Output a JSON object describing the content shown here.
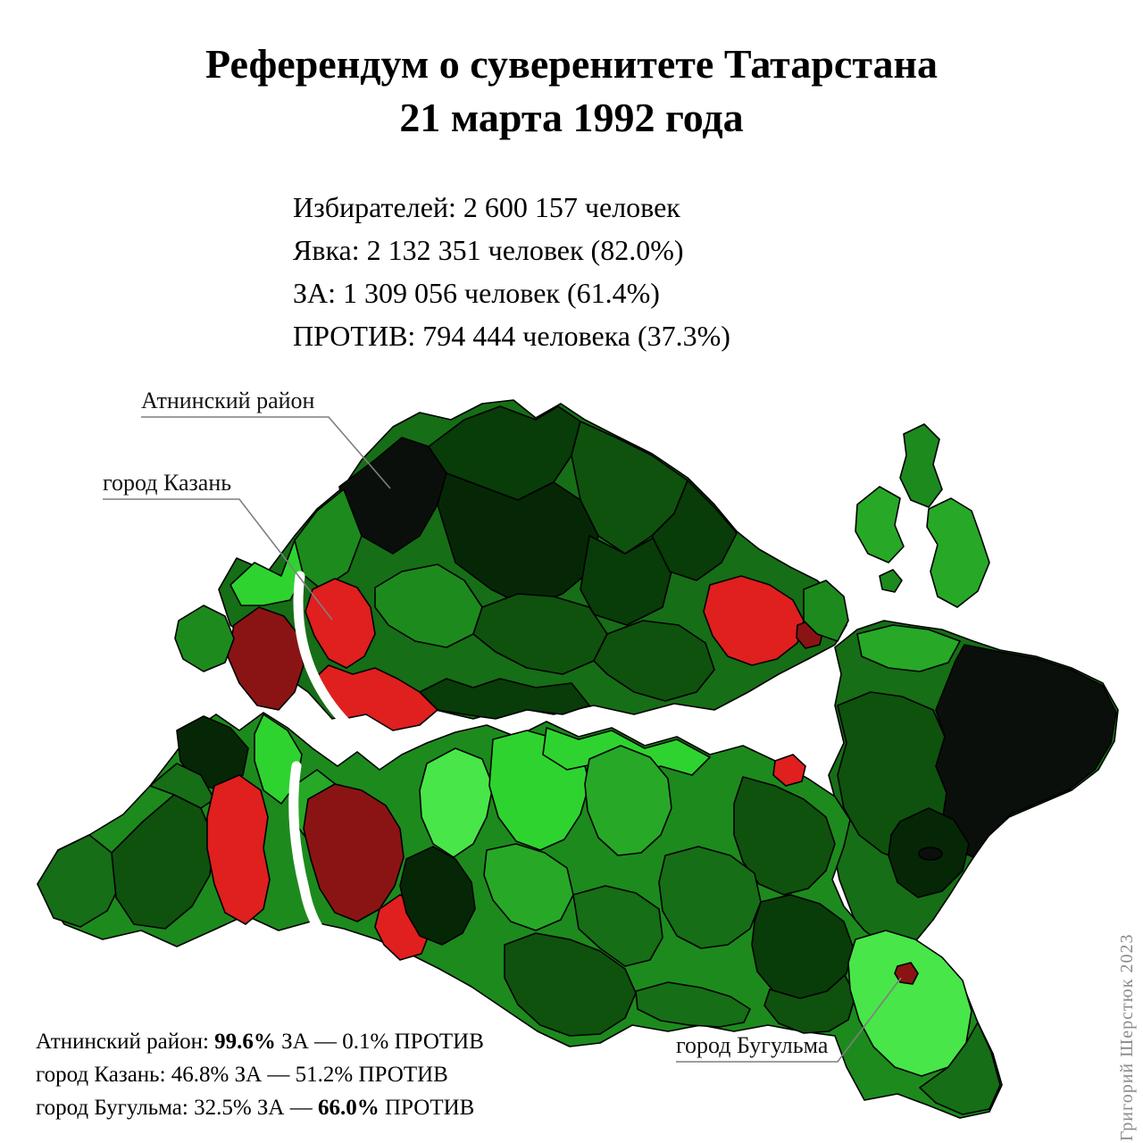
{
  "title": {
    "line1": "Референдум о суверенитете Татарстана",
    "line2": "21 марта 1992 года"
  },
  "stats": {
    "lines": [
      "Избирателей: 2 600 157 человек",
      "Явка: 2 132 351 человек (82.0%)",
      "ЗА: 1 309 056 человек (61.4%)",
      "ПРОТИВ: 794 444 человека (37.3%)"
    ]
  },
  "map": {
    "annotations": [
      {
        "label": "Атнинский район"
      },
      {
        "label": "город Казань"
      },
      {
        "label": "город Бугульма"
      }
    ]
  },
  "footnotes": [
    {
      "segments": [
        {
          "text": "Атнинский район: ",
          "bold": false
        },
        {
          "text": "99.6%",
          "bold": true
        },
        {
          "text": " ЗА — 0.1% ПРОТИВ",
          "bold": false
        }
      ]
    },
    {
      "segments": [
        {
          "text": "город Казань: 46.8% ЗА — 51.2% ПРОТИВ",
          "bold": false
        }
      ]
    },
    {
      "segments": [
        {
          "text": "город Бугульма: 32.5% ЗА — ",
          "bold": false
        },
        {
          "text": "66.0%",
          "bold": true
        },
        {
          "text": " ПРОТИВ",
          "bold": false
        }
      ]
    }
  ],
  "watermark": "Григорий Шерстюк 2023",
  "colors": {
    "za_darkest": "#0b0f0b",
    "za_medium": "#1d8a1d",
    "za_lightest": "#48e648",
    "protiv_red": "#e01f1f",
    "protiv_dark_red": "#8a1414",
    "background": "#ffffff"
  }
}
